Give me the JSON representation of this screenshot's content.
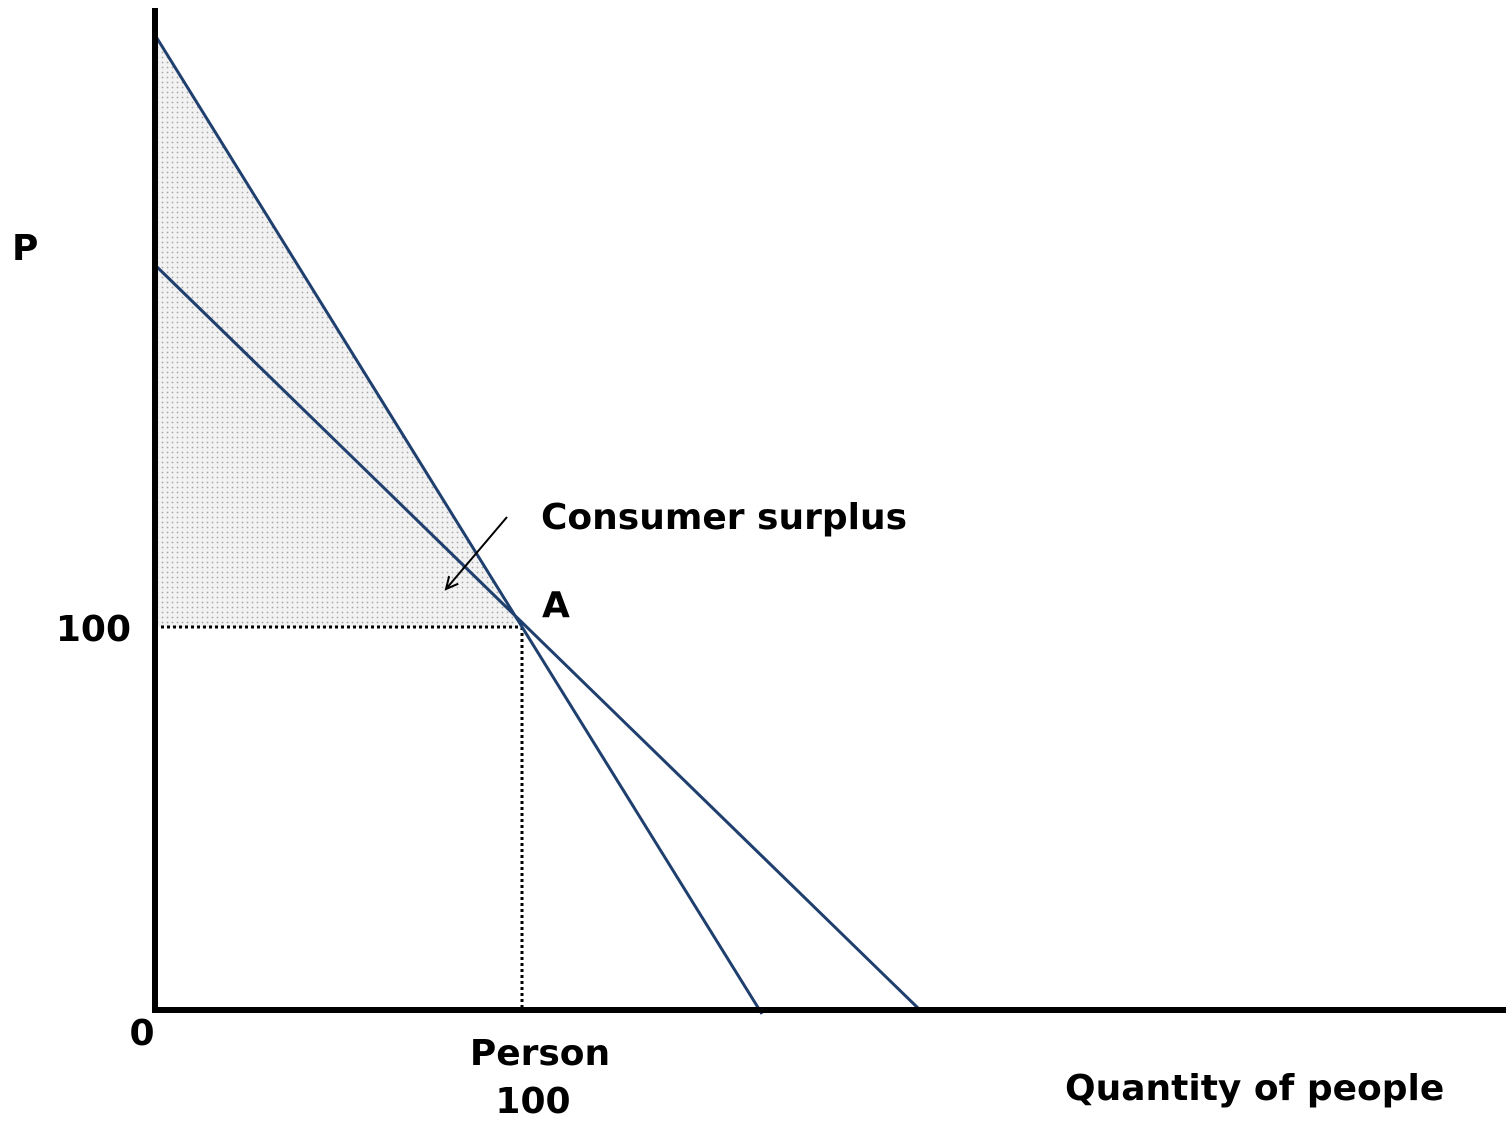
{
  "y_axis": {
    "label": "P",
    "tick": "100"
  },
  "x_axis": {
    "label": "Quantity of people",
    "origin": "0",
    "tick_title": "Person",
    "tick": "100"
  },
  "point": {
    "label": "A"
  },
  "annotation": {
    "label": "Consumer surplus"
  }
}
